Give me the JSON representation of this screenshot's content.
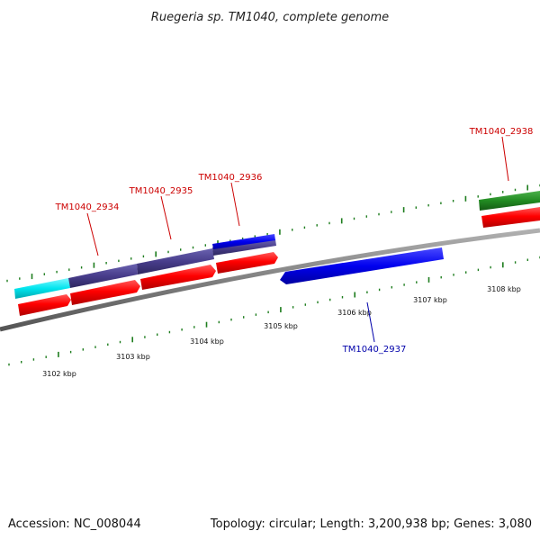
{
  "title": "Ruegeria sp. TM1040, complete genome",
  "footer": {
    "accession": "Accession: NC_008044",
    "summary": "Topology: circular; Length: 3,200,938 bp; Genes: 3,080"
  },
  "scale_labels": [
    "3102 kbp",
    "3103 kbp",
    "3104 kbp",
    "3105 kbp",
    "3106 kbp",
    "3107 kbp",
    "3108 kbp"
  ],
  "genes": [
    {
      "id": "TM1040_2934",
      "strand": "forward",
      "color": "#cc0000"
    },
    {
      "id": "TM1040_2935",
      "strand": "forward",
      "color": "#cc0000"
    },
    {
      "id": "TM1040_2936",
      "strand": "forward",
      "color": "#cc0000"
    },
    {
      "id": "TM1040_2937",
      "strand": "reverse",
      "color": "#0000aa"
    },
    {
      "id": "TM1040_2938",
      "strand": "forward",
      "color": "#cc0000"
    }
  ],
  "colors": {
    "backbone": "#808080",
    "cds": "#ff0000",
    "reverse_gene": "#0000ee",
    "cyan_feature": "#00e5ee",
    "purple_feature": "#483d8b",
    "green_feature": "#228b22",
    "tick": "#1e7d1e"
  }
}
